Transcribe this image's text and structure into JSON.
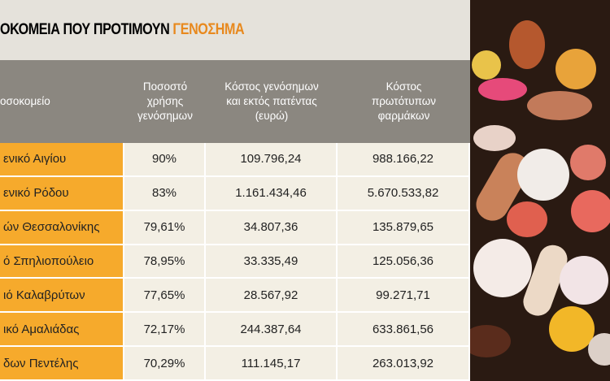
{
  "title": {
    "text": "ΟΚΟΜΕΙΑ ΠΟΥ ΠΡΟΤΙΜΟΥΝ",
    "highlight": "ΓΕΝΟΣΗΜΑ"
  },
  "table": {
    "header": [
      [
        "οσοκομείο"
      ],
      [
        "Ποσοστό",
        "χρήσης",
        "γενόσημων"
      ],
      [
        "Κόστος γενόσημων",
        "και εκτός πατέντας",
        "(ευρώ)"
      ],
      [
        "Κόστος",
        "πρωτότυπων",
        "φαρμάκων"
      ]
    ],
    "rows": [
      [
        "ενικό Αιγίου",
        "90%",
        "109.796,24",
        "988.166,22"
      ],
      [
        "ενικό Ρόδου",
        "83%",
        "1.161.434,46",
        "5.670.533,82"
      ],
      [
        "ών Θεσσαλονίκης",
        "79,61%",
        "34.807,36",
        "135.879,65"
      ],
      [
        "ό Σπηλιοπούλειο",
        "78,95%",
        "33.335,49",
        "125.056,36"
      ],
      [
        "ιό Καλαβρύτων",
        "77,65%",
        "28.567,92",
        "99.271,71"
      ],
      [
        "ικό Αμαλιάδας",
        "72,17%",
        "244.387,64",
        "633.861,56"
      ],
      [
        "δων Πεντέλης",
        "70,29%",
        "111.145,17",
        "263.013,92"
      ]
    ]
  }
}
